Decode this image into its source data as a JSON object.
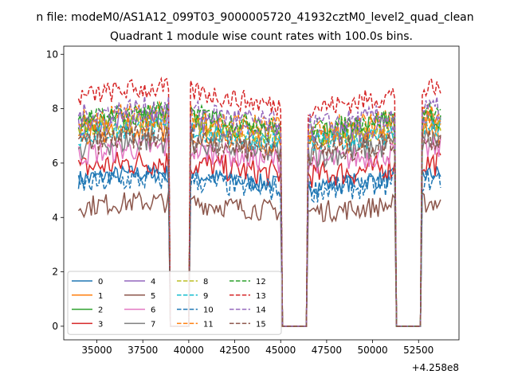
{
  "chart_data": {
    "type": "line",
    "suptitle": "n file: modeM0/AS1A12_099T03_9000005720_41932cztM0_level2_quad_clean",
    "title": "Quadrant 1 module wise count rates with 100.0s bins.",
    "xlabel": "",
    "ylabel": "",
    "x_offset_label": "+4.258e8",
    "xlim": [
      33200,
      54700
    ],
    "ylim": [
      -0.5,
      10.3
    ],
    "x_ticks": [
      35000,
      37500,
      40000,
      42500,
      45000,
      47500,
      50000,
      52500
    ],
    "x_tick_labels": [
      "35000",
      "37500",
      "40000",
      "42500",
      "45000",
      "47500",
      "50000",
      "52500"
    ],
    "y_ticks": [
      0,
      2,
      4,
      6,
      8,
      10
    ],
    "y_tick_labels": [
      "0",
      "2",
      "4",
      "6",
      "8",
      "10"
    ],
    "bin_width_s": 100,
    "gaps": [
      [
        38900,
        40100
      ],
      [
        45000,
        46500
      ],
      [
        51200,
        52700
      ]
    ],
    "segments": [
      [
        34000,
        38900
      ],
      [
        40100,
        45000
      ],
      [
        46500,
        51200
      ],
      [
        52700,
        53700
      ]
    ],
    "legend_location": "lower-left",
    "legend_columns": 4,
    "series": [
      {
        "name": "0",
        "mean": 5.4,
        "style": "solid",
        "color": "#1f77b4"
      },
      {
        "name": "1",
        "mean": 6.9,
        "style": "solid",
        "color": "#ff7f0e"
      },
      {
        "name": "2",
        "mean": 7.4,
        "style": "solid",
        "color": "#2ca02c"
      },
      {
        "name": "3",
        "mean": 5.8,
        "style": "solid",
        "color": "#d62728"
      },
      {
        "name": "4",
        "mean": 7.3,
        "style": "solid",
        "color": "#9467bd"
      },
      {
        "name": "5",
        "mean": 4.4,
        "style": "solid",
        "color": "#8c564b"
      },
      {
        "name": "6",
        "mean": 6.3,
        "style": "solid",
        "color": "#e377c2"
      },
      {
        "name": "7",
        "mean": 6.6,
        "style": "solid",
        "color": "#7f7f7f"
      },
      {
        "name": "8",
        "mean": 7.2,
        "style": "dashed",
        "color": "#bcbd22"
      },
      {
        "name": "9",
        "mean": 7.0,
        "style": "dashed",
        "color": "#17becf"
      },
      {
        "name": "10",
        "mean": 5.2,
        "style": "dashed",
        "color": "#1f77b4"
      },
      {
        "name": "11",
        "mean": 7.5,
        "style": "dashed",
        "color": "#ff7f0e"
      },
      {
        "name": "12",
        "mean": 7.6,
        "style": "dashed",
        "color": "#2ca02c"
      },
      {
        "name": "13",
        "mean": 8.4,
        "style": "dashed",
        "color": "#d62728"
      },
      {
        "name": "14",
        "mean": 7.7,
        "style": "dashed",
        "color": "#9467bd"
      },
      {
        "name": "15",
        "mean": 6.7,
        "style": "dashed",
        "color": "#8c564b"
      }
    ]
  }
}
